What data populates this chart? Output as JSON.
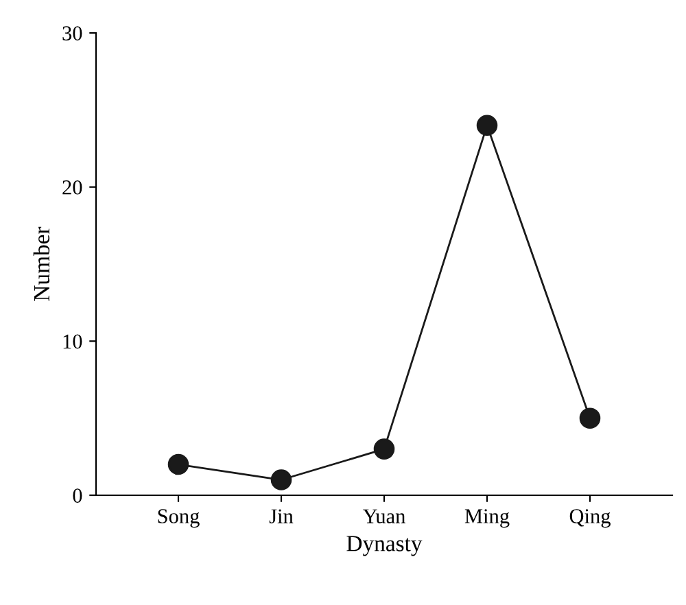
{
  "chart_data": {
    "type": "line",
    "xlabel": "Dynasty",
    "ylabel": "Number",
    "categories": [
      "Song",
      "Jin",
      "Yuan",
      "Ming",
      "Qing"
    ],
    "series": [
      {
        "color": "#1a1a1a",
        "values": [
          2,
          1,
          3,
          24,
          5
        ]
      }
    ],
    "ylim": [
      0,
      30
    ],
    "yticks": [
      0,
      10,
      20,
      30
    ],
    "grid": false,
    "legend": false,
    "marker": "circle",
    "line_style": "solid"
  }
}
